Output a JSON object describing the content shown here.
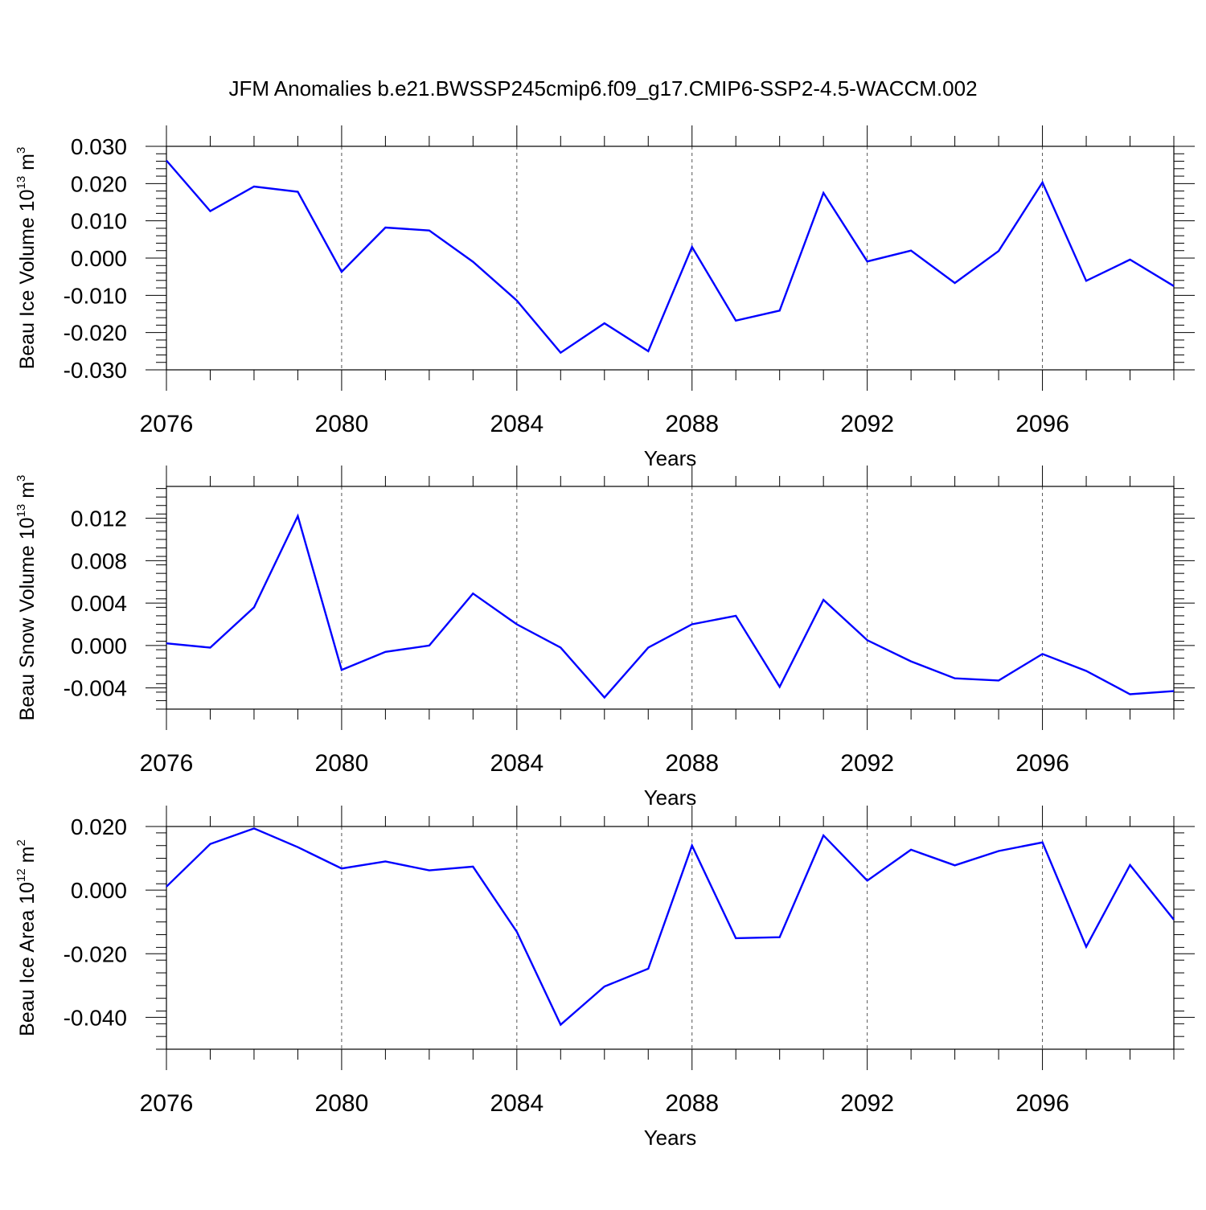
{
  "title": "JFM Anomalies b.e21.BWSSP245cmip6.f09_g17.CMIP6-SSP2-4.5-WACCM.002",
  "colors": {
    "line": "#0000ff",
    "axis": "#000000",
    "grid": "#555555"
  },
  "chart_data": [
    {
      "type": "line",
      "ylabel": {
        "base": "Beau Ice Volume 10",
        "exp": "13",
        "unit": " m",
        "unit_exp": "3"
      },
      "xlabel": "Years",
      "xlim": [
        2076,
        2099
      ],
      "ylim": [
        -0.03,
        0.03
      ],
      "yticks": [
        -0.03,
        -0.02,
        -0.01,
        0.0,
        0.01,
        0.02,
        0.03
      ],
      "ytick_labels": [
        "-0.030",
        "-0.020",
        "-0.010",
        "0.000",
        "0.010",
        "0.020",
        "0.030"
      ],
      "xticks": [
        2076,
        2080,
        2084,
        2088,
        2092,
        2096
      ],
      "xtick_labels": [
        "2076",
        "2080",
        "2084",
        "2088",
        "2092",
        "2096"
      ],
      "grid": "vertical dashed at labeled years",
      "series": [
        {
          "name": "Beau Ice Volume",
          "x": [
            2076,
            2077,
            2078,
            2079,
            2080,
            2081,
            2082,
            2083,
            2084,
            2085,
            2086,
            2087,
            2088,
            2089,
            2090,
            2091,
            2092,
            2093,
            2094,
            2095,
            2096,
            2097,
            2098,
            2099
          ],
          "values": [
            0.0262,
            0.0126,
            0.0192,
            0.0178,
            -0.0037,
            0.0082,
            0.0074,
            -0.001,
            -0.0114,
            -0.0254,
            -0.0175,
            -0.025,
            0.003,
            -0.0168,
            -0.0141,
            0.0175,
            -0.0009,
            0.002,
            -0.0067,
            0.0019,
            0.0203,
            -0.0061,
            -0.0004,
            -0.0075
          ]
        }
      ]
    },
    {
      "type": "line",
      "ylabel": {
        "base": "Beau Snow Volume 10",
        "exp": "13",
        "unit": " m",
        "unit_exp": "3"
      },
      "xlabel": "Years",
      "xlim": [
        2076,
        2099
      ],
      "ylim": [
        -0.006,
        0.015
      ],
      "yticks": [
        -0.004,
        0.0,
        0.004,
        0.008,
        0.012
      ],
      "ytick_labels": [
        "-0.004",
        "0.000",
        "0.004",
        "0.008",
        "0.012"
      ],
      "xticks": [
        2076,
        2080,
        2084,
        2088,
        2092,
        2096
      ],
      "xtick_labels": [
        "2076",
        "2080",
        "2084",
        "2088",
        "2092",
        "2096"
      ],
      "grid": "vertical dashed at labeled years",
      "series": [
        {
          "name": "Beau Snow Volume",
          "x": [
            2076,
            2077,
            2078,
            2079,
            2080,
            2081,
            2082,
            2083,
            2084,
            2085,
            2086,
            2087,
            2088,
            2089,
            2090,
            2091,
            2092,
            2093,
            2094,
            2095,
            2096,
            2097,
            2098,
            2099
          ],
          "values": [
            0.0002,
            -0.0002,
            0.0036,
            0.0122,
            -0.0023,
            -0.0006,
            0.0,
            0.0049,
            0.002,
            -0.0002,
            -0.0049,
            -0.0002,
            0.002,
            0.0028,
            -0.0039,
            0.0043,
            0.0005,
            -0.0015,
            -0.0031,
            -0.0033,
            -0.0008,
            -0.0024,
            -0.0046,
            -0.0043
          ]
        }
      ]
    },
    {
      "type": "line",
      "ylabel": {
        "base": "Beau Ice Area 10",
        "exp": "12",
        "unit": " m",
        "unit_exp": "2"
      },
      "xlabel": "Years",
      "xlim": [
        2076,
        2099
      ],
      "ylim": [
        -0.05,
        0.02
      ],
      "yticks": [
        -0.04,
        -0.02,
        0.0,
        0.02
      ],
      "ytick_labels": [
        "-0.040",
        "-0.020",
        "0.000",
        "0.020"
      ],
      "xticks": [
        2076,
        2080,
        2084,
        2088,
        2092,
        2096
      ],
      "xtick_labels": [
        "2076",
        "2080",
        "2084",
        "2088",
        "2092",
        "2096"
      ],
      "grid": "vertical dashed at labeled years",
      "series": [
        {
          "name": "Beau Ice Area",
          "x": [
            2076,
            2077,
            2078,
            2079,
            2080,
            2081,
            2082,
            2083,
            2084,
            2085,
            2086,
            2087,
            2088,
            2089,
            2090,
            2091,
            2092,
            2093,
            2094,
            2095,
            2096,
            2097,
            2098,
            2099
          ],
          "values": [
            0.0011,
            0.0145,
            0.0194,
            0.0135,
            0.0068,
            0.009,
            0.0062,
            0.0074,
            -0.0131,
            -0.0423,
            -0.0303,
            -0.0247,
            0.014,
            -0.0151,
            -0.0148,
            0.0172,
            0.003,
            0.0127,
            0.0078,
            0.0123,
            0.015,
            -0.0178,
            0.0079,
            -0.0093
          ]
        }
      ]
    }
  ]
}
